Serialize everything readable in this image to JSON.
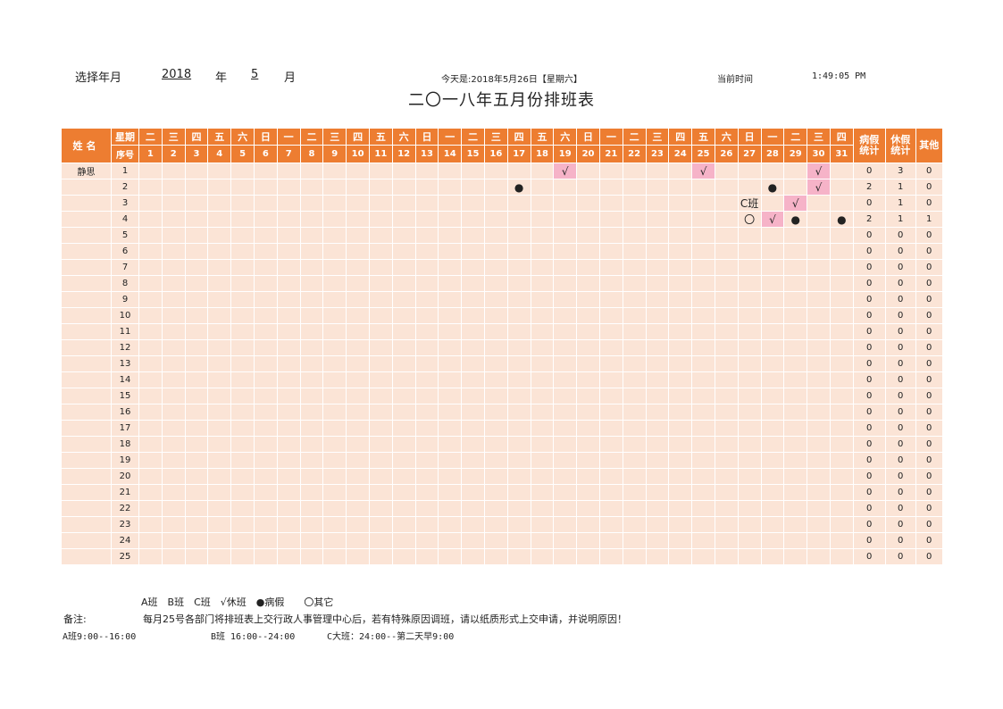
{
  "header": {
    "select_label": "选择年月",
    "year": "2018",
    "year_unit": "年",
    "month": "5",
    "month_unit": "月",
    "today_text": "今天是:2018年5月26日【星期六】",
    "current_time_label": "当前时间",
    "current_time": "1:49:05 PM"
  },
  "title": "二〇一八年五月份排班表",
  "table": {
    "name_header": "姓名",
    "weekday_label": "星期",
    "seq_label": "序号",
    "weekdays": [
      "二",
      "三",
      "四",
      "五",
      "六",
      "日",
      "一",
      "二",
      "三",
      "四",
      "五",
      "六",
      "日",
      "一",
      "二",
      "三",
      "四",
      "五",
      "六",
      "日",
      "一",
      "二",
      "三",
      "四",
      "五",
      "六",
      "日",
      "一",
      "二",
      "三",
      "四"
    ],
    "dates": [
      "1",
      "2",
      "3",
      "4",
      "5",
      "6",
      "7",
      "8",
      "9",
      "10",
      "11",
      "12",
      "13",
      "14",
      "15",
      "16",
      "17",
      "18",
      "19",
      "20",
      "21",
      "22",
      "23",
      "24",
      "25",
      "26",
      "27",
      "28",
      "29",
      "30",
      "31"
    ],
    "stat_headers": [
      "病假\n统计",
      "休假\n统计",
      "其他"
    ],
    "rows": [
      {
        "name": "静思",
        "seq": "1",
        "marks": {
          "19": "√",
          "25": "√",
          "30": "√"
        },
        "sick": "0",
        "rest": "3",
        "other": "0"
      },
      {
        "name": "",
        "seq": "2",
        "marks": {
          "17": "●",
          "28": "●",
          "30": "√"
        },
        "sick": "2",
        "rest": "1",
        "other": "0"
      },
      {
        "name": "",
        "seq": "3",
        "marks": {
          "27": "C班",
          "29": "√"
        },
        "sick": "0",
        "rest": "1",
        "other": "0"
      },
      {
        "name": "",
        "seq": "4",
        "marks": {
          "27": "〇",
          "28": "√",
          "29": "●",
          "31": "●"
        },
        "sick": "2",
        "rest": "1",
        "other": "1"
      },
      {
        "name": "",
        "seq": "5",
        "marks": {},
        "sick": "0",
        "rest": "0",
        "other": "0"
      },
      {
        "name": "",
        "seq": "6",
        "marks": {},
        "sick": "0",
        "rest": "0",
        "other": "0"
      },
      {
        "name": "",
        "seq": "7",
        "marks": {},
        "sick": "0",
        "rest": "0",
        "other": "0"
      },
      {
        "name": "",
        "seq": "8",
        "marks": {},
        "sick": "0",
        "rest": "0",
        "other": "0"
      },
      {
        "name": "",
        "seq": "9",
        "marks": {},
        "sick": "0",
        "rest": "0",
        "other": "0"
      },
      {
        "name": "",
        "seq": "10",
        "marks": {},
        "sick": "0",
        "rest": "0",
        "other": "0"
      },
      {
        "name": "",
        "seq": "11",
        "marks": {},
        "sick": "0",
        "rest": "0",
        "other": "0"
      },
      {
        "name": "",
        "seq": "12",
        "marks": {},
        "sick": "0",
        "rest": "0",
        "other": "0"
      },
      {
        "name": "",
        "seq": "13",
        "marks": {},
        "sick": "0",
        "rest": "0",
        "other": "0"
      },
      {
        "name": "",
        "seq": "14",
        "marks": {},
        "sick": "0",
        "rest": "0",
        "other": "0"
      },
      {
        "name": "",
        "seq": "15",
        "marks": {},
        "sick": "0",
        "rest": "0",
        "other": "0"
      },
      {
        "name": "",
        "seq": "16",
        "marks": {},
        "sick": "0",
        "rest": "0",
        "other": "0"
      },
      {
        "name": "",
        "seq": "17",
        "marks": {},
        "sick": "0",
        "rest": "0",
        "other": "0"
      },
      {
        "name": "",
        "seq": "18",
        "marks": {},
        "sick": "0",
        "rest": "0",
        "other": "0"
      },
      {
        "name": "",
        "seq": "19",
        "marks": {},
        "sick": "0",
        "rest": "0",
        "other": "0"
      },
      {
        "name": "",
        "seq": "20",
        "marks": {},
        "sick": "0",
        "rest": "0",
        "other": "0"
      },
      {
        "name": "",
        "seq": "21",
        "marks": {},
        "sick": "0",
        "rest": "0",
        "other": "0"
      },
      {
        "name": "",
        "seq": "22",
        "marks": {},
        "sick": "0",
        "rest": "0",
        "other": "0"
      },
      {
        "name": "",
        "seq": "23",
        "marks": {},
        "sick": "0",
        "rest": "0",
        "other": "0"
      },
      {
        "name": "",
        "seq": "24",
        "marks": {},
        "sick": "0",
        "rest": "0",
        "other": "0"
      },
      {
        "name": "",
        "seq": "25",
        "marks": {},
        "sick": "0",
        "rest": "0",
        "other": "0"
      }
    ]
  },
  "legend": "A班　B班　C班　√休班　●病假　　〇其它",
  "note_label": "备注:",
  "note_text": "每月25号各部门将排班表上交行政人事管理中心后，若有特殊原因调班，请以纸质形式上交申请，并说明原因！",
  "shifts": {
    "a": "A班9:00--16:00",
    "b": "B班 16:00--24:00",
    "c": "C大班：24:00--第二天早9:00"
  },
  "colors": {
    "header_orange": "#ed7d31",
    "cell_peach": "#fbe4d6",
    "rest_pink": "#f6b3c8"
  }
}
